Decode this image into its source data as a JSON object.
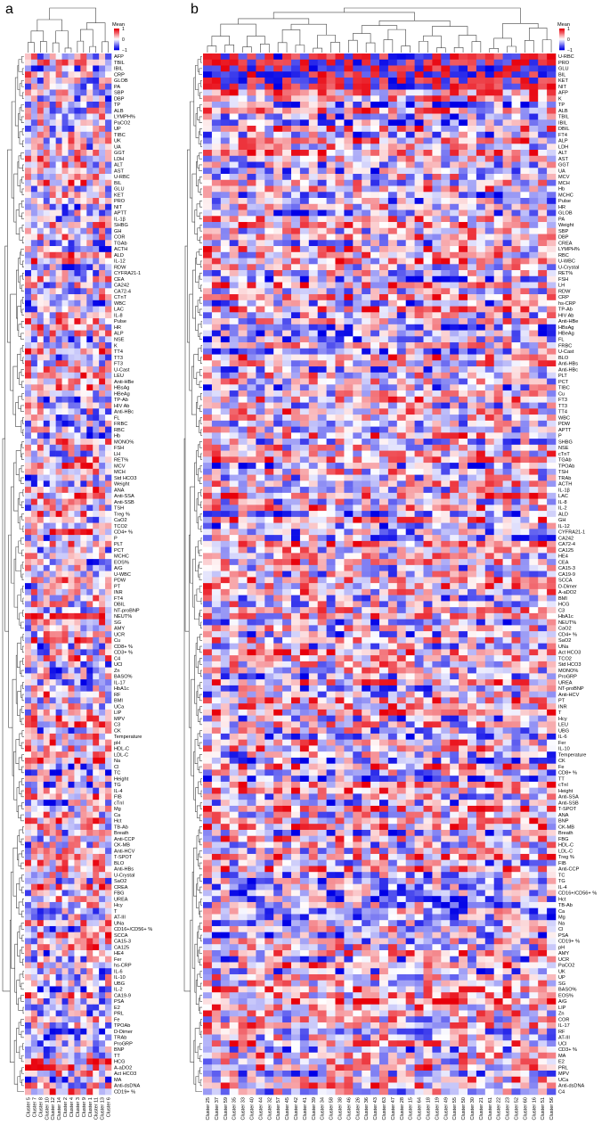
{
  "panels": [
    {
      "label": "a"
    },
    {
      "label": "b"
    }
  ],
  "colors": {
    "high": "#e8000b",
    "mid": "#ffffff",
    "low": "#0000e6"
  },
  "chart_data": [
    {
      "type": "heatmap",
      "panel": "a",
      "legend_title": "Mean",
      "legend_ticks": [
        "1",
        "0",
        "−1"
      ],
      "value_range": [
        -1,
        1
      ],
      "columns": [
        "Cluster 5",
        "Cluster 7",
        "Cluster 8",
        "Cluster 10",
        "Cluster 12",
        "Cluster 14",
        "Cluster 2",
        "Cluster 4",
        "Cluster 3",
        "Cluster 9",
        "Cluster 1",
        "Cluster 11",
        "Cluster 13",
        "Cluster 6"
      ],
      "rows": [
        "AFP",
        "TBIL",
        "IBIL",
        "CRP",
        "GLOB",
        "PA",
        "SBP",
        "DBP",
        "TP",
        "ALB",
        "LYMPH%",
        "PaCO2",
        "UP",
        "TIBC",
        "UK",
        "UA",
        "GGT",
        "LDH",
        "ALT",
        "AST",
        "U-RBC",
        "BIL",
        "GLU",
        "KET",
        "PRO",
        "NIT",
        "APTT",
        "IL-1β",
        "SHBG",
        "GH",
        "COR",
        "TGAb",
        "ACTH",
        "ALD",
        "IL-12",
        "RDW",
        "CYFRA21-1",
        "CEA",
        "CA242",
        "CA72-4",
        "CTnT",
        "WBC",
        "LAC",
        "IL-8",
        "Pulse",
        "HR",
        "ALP",
        "NSE",
        "K",
        "TT4",
        "TT3",
        "FT3",
        "U-Cast",
        "LEU",
        "Anti-HBe",
        "HBsAg",
        "HBeAg",
        "TP-Ab",
        "HIV Ab",
        "Anti-HBc",
        "FL",
        "FRBC",
        "RBC",
        "Hb",
        "MONO%",
        "FSH",
        "LH",
        "RET%",
        "MCV",
        "MCH",
        "Std HCO3",
        "Weight",
        "ANA",
        "Anti-SSA",
        "Anti-SSB",
        "TSH",
        "Treg %",
        "CaO2",
        "TCO2",
        "CD4+ %",
        "P",
        "PLT",
        "PCT",
        "MCHC",
        "EOS%",
        "A/G",
        "U-WBC",
        "PDW",
        "PT",
        "INR",
        "FT4",
        "DBIL",
        "NT-proBNP",
        "NEUT%",
        "SG",
        "AMY",
        "UCR",
        "Cu",
        "CD8+ %",
        "CD3+ %",
        "C4",
        "UCl",
        "Zn",
        "BASO%",
        "IL-17",
        "HbA1c",
        "RF",
        "BMI",
        "UCa",
        "LIP",
        "MPV",
        "C3",
        "CK",
        "Temperature",
        "pH",
        "HDL-C",
        "LDL-C",
        "Na",
        "Cl",
        "TC",
        "Height",
        "TG",
        "IL-4",
        "FIB",
        "cTnI",
        "Mg",
        "Ca",
        "Hct",
        "TB-Ab",
        "Breath",
        "Anti-CCP",
        "CK-MB",
        "Anti-HCV",
        "T-SPOT",
        "BLO",
        "Anti-HBs",
        "U-Crystal",
        "SaO2",
        "CREA",
        "FBG",
        "UREA",
        "Hcy",
        "T",
        "AT-III",
        "UNa",
        "CD16+/CD56+ %",
        "SCCA",
        "CA15-3",
        "CA125",
        "HE4",
        "Fer",
        "hs-CRP",
        "IL-6",
        "IL-10",
        "UBG",
        "IL-2",
        "CA19-9",
        "PSA",
        "E2",
        "PRL",
        "Fe",
        "TPOAb",
        "D-Dimer",
        "TRAb",
        "ProGRP",
        "BNP",
        "TT",
        "HCG",
        "A-aDO2",
        "Act HCO3",
        "MA",
        "Anti-dsDNA",
        "CD19+ %"
      ]
    },
    {
      "type": "heatmap",
      "panel": "b",
      "legend_title": "Mean",
      "legend_ticks": [
        "1",
        "0",
        "−1"
      ],
      "value_range": [
        -1,
        1
      ],
      "columns": [
        "Cluster 25",
        "Cluster 37",
        "Cluster 59",
        "Cluster 35",
        "Cluster 33",
        "Cluster 40",
        "Cluster 44",
        "Cluster 32",
        "Cluster 57",
        "Cluster 45",
        "Cluster 42",
        "Cluster 41",
        "Cluster 39",
        "Cluster 34",
        "Cluster 58",
        "Cluster 38",
        "Cluster 46",
        "Cluster 26",
        "Cluster 36",
        "Cluster 43",
        "Cluster 63",
        "Cluster 47",
        "Cluster 28",
        "Cluster 15",
        "Cluster 64",
        "Cluster 18",
        "Cluster 19",
        "Cluster 49",
        "Cluster 55",
        "Cluster 50",
        "Cluster 30",
        "Cluster 21",
        "Cluster 61",
        "Cluster 22",
        "Cluster 23",
        "Cluster 52",
        "Cluster 60",
        "Cluster 16",
        "Cluster 51",
        "Cluster 56"
      ],
      "rows": [
        "U-RBC",
        "PRO",
        "GLU",
        "BIL",
        "KET",
        "NIT",
        "AFP",
        "K",
        "TP",
        "ALB",
        "TBIL",
        "IBIL",
        "DBIL",
        "FT4",
        "ALP",
        "LDH",
        "ALT",
        "AST",
        "GGT",
        "UA",
        "MCV",
        "MCH",
        "Hb",
        "MCHC",
        "Pulse",
        "HR",
        "GLOB",
        "PA",
        "Weight",
        "SBP",
        "DBP",
        "CREA",
        "LYMPH%",
        "RBC",
        "U-WBC",
        "U-Crystal",
        "RET%",
        "FSH",
        "LH",
        "RDW",
        "CRP",
        "hs-CRP",
        "TP-Ab",
        "HIV Ab",
        "Anti-HBe",
        "HBsAg",
        "HBeAg",
        "FL",
        "FRBC",
        "U-Cast",
        "BLO",
        "Anti-HBs",
        "Anti-HBc",
        "PLT",
        "PCT",
        "TIBC",
        "Cu",
        "FT3",
        "TT3",
        "TT4",
        "WBC",
        "PDW",
        "APTT",
        "P",
        "SHBG",
        "NSE",
        "cTnT",
        "TGAb",
        "TPOAb",
        "TSH",
        "TRAb",
        "ACTH",
        "IL-1β",
        "LAC",
        "IL-8",
        "IL-2",
        "ALD",
        "GH",
        "IL-12",
        "CYFRA21-1",
        "CA242",
        "CA72-4",
        "CA125",
        "HE4",
        "CEA",
        "CA15-3",
        "CA19-9",
        "SCCA",
        "D-Dimer",
        "A-aDO2",
        "BMI",
        "HCG",
        "C3",
        "HbA1c",
        "NEUT%",
        "CaO2",
        "CD4+ %",
        "SaO2",
        "UNa",
        "Act HCO3",
        "TCO2",
        "Std HCO3",
        "MONO%",
        "ProGRP",
        "UREA",
        "NT-proBNP",
        "Anti-HCV",
        "PT",
        "INR",
        "T",
        "Hcy",
        "LEU",
        "UBG",
        "IL-6",
        "Fer",
        "IL-10",
        "Temperature",
        "CK",
        "Fe",
        "CD8+ %",
        "TT",
        "cTnI",
        "Height",
        "Anti-SSA",
        "Anti-SSB",
        "T-SPOT",
        "ANA",
        "BNP",
        "CK-MB",
        "Breath",
        "FBG",
        "HDL-C",
        "LDL-C",
        "Treg %",
        "FIB",
        "Anti-CCP",
        "TC",
        "TG",
        "IL-4",
        "CD16+/CD56+ %",
        "Hct",
        "TB-Ab",
        "Ca",
        "Mg",
        "Na",
        "Cl",
        "PSA",
        "CD19+ %",
        "pH",
        "AMY",
        "UCR",
        "PaCO2",
        "UK",
        "UP",
        "SG",
        "BASO%",
        "EOS%",
        "A/G",
        "LIP",
        "Zn",
        "COR",
        "IL-17",
        "RF",
        "AT-III",
        "UCl",
        "CD3+ %",
        "MA",
        "E2",
        "PRL",
        "MPV",
        "UCa",
        "Anti-dsDNA",
        "C4"
      ]
    }
  ]
}
